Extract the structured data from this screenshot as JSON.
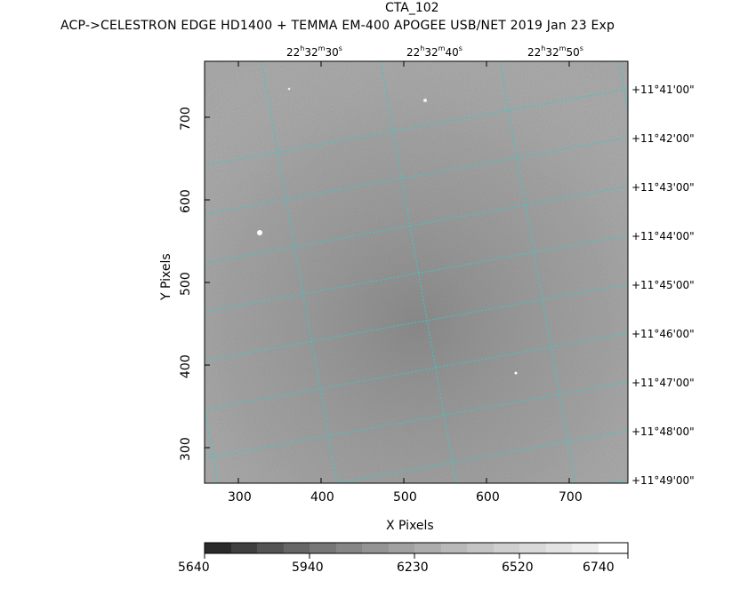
{
  "title": "CTA_102",
  "subtitle": "ACP->CELESTRON EDGE HD1400 + TEMMA EM-400 APOGEE USB/NET   2019 Jan 23    Exp",
  "ra_labels": [
    {
      "h": "22",
      "m": "32",
      "s": "30"
    },
    {
      "h": "22",
      "m": "32",
      "s": "40"
    },
    {
      "h": "22",
      "m": "32",
      "s": "50"
    }
  ],
  "ra_units": {
    "h": "h",
    "m": "m",
    "s": "s"
  },
  "dec_labels": [
    "+11°41'00\"",
    "+11°42'00\"",
    "+11°43'00\"",
    "+11°44'00\"",
    "+11°45'00\"",
    "+11°46'00\"",
    "+11°47'00\"",
    "+11°48'00\"",
    "+11°49'00\""
  ],
  "x_ticks": [
    "300",
    "400",
    "500",
    "600",
    "700"
  ],
  "y_ticks": [
    "300",
    "400",
    "500",
    "600",
    "700"
  ],
  "x_label": "X Pixels",
  "y_label": "Y Pixels",
  "colorbar_ticks": [
    "5640",
    "5940",
    "6230",
    "6520",
    "6740"
  ],
  "colors": {
    "grid": "#33cccc",
    "frame": "#000000"
  }
}
